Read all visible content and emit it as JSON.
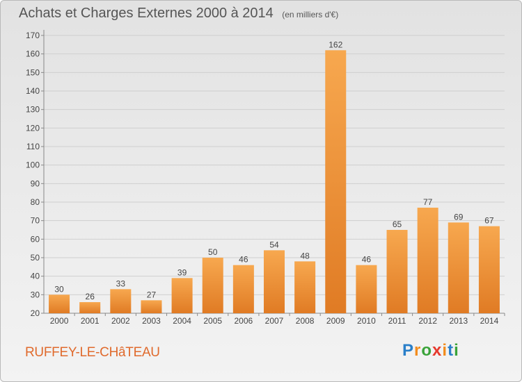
{
  "header": {
    "title": "Achats et Charges Externes 2000 à 2014",
    "unit_note": "(en milliers d'€)"
  },
  "footer": {
    "commune": "RUFFEY-LE-CHâTEAU",
    "brand": {
      "letters": [
        "P",
        "r",
        "o",
        "x",
        "i",
        "t",
        "i"
      ],
      "colors": [
        "#2a7fc9",
        "#f28c1d",
        "#3aa33a",
        "#e63a2e",
        "#f28c1d",
        "#2a7fc9",
        "#3aa33a"
      ]
    }
  },
  "colors": {
    "bar_light": "#f7a84f",
    "bar_dark": "#e07b24",
    "grid": "#cfcfcf",
    "axis_text": "#444444"
  },
  "chart_data": {
    "type": "bar",
    "categories": [
      "2000",
      "2001",
      "2002",
      "2003",
      "2004",
      "2005",
      "2006",
      "2007",
      "2008",
      "2009",
      "2010",
      "2011",
      "2012",
      "2013",
      "2014"
    ],
    "values": [
      30,
      26,
      33,
      27,
      39,
      50,
      46,
      54,
      48,
      162,
      46,
      65,
      77,
      69,
      67
    ],
    "title": "Achats et Charges Externes 2000 à 2014",
    "ylim": [
      20,
      170
    ],
    "yticks": [
      20,
      30,
      40,
      50,
      60,
      70,
      80,
      90,
      100,
      110,
      120,
      130,
      140,
      150,
      160,
      170
    ],
    "grid": true,
    "data_labels": true
  }
}
